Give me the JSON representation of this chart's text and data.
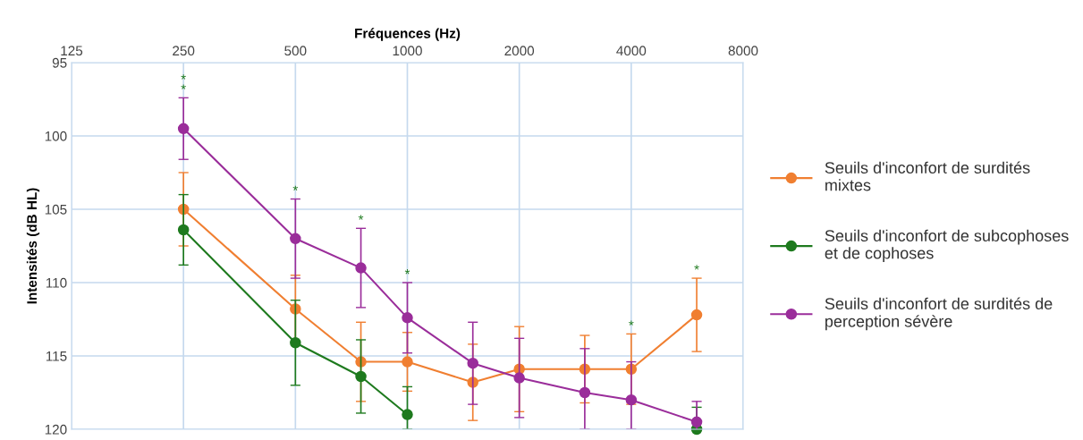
{
  "chart_data": {
    "type": "line",
    "xlabel": "Fréquences (Hz)",
    "ylabel": "Intensités (dB HL)",
    "x": [
      250,
      500,
      750,
      1000,
      1500,
      2000,
      3000,
      4000,
      6000
    ],
    "log": "x",
    "xlim": [
      125,
      8000
    ],
    "xticks": [
      125,
      250,
      500,
      1000,
      2000,
      4000,
      8000
    ],
    "ylim": [
      120,
      95
    ],
    "yticks": [
      95,
      100,
      105,
      110,
      115,
      120
    ],
    "grid": true,
    "legend": "right",
    "marker": "circle",
    "line_style": "solid",
    "series": [
      {
        "name": "Seuils d'inconfort de surdités\nmixtes",
        "color": "#f07f31",
        "values": [
          105.0,
          111.8,
          115.4,
          115.4,
          116.8,
          115.9,
          115.9,
          115.9,
          112.2
        ],
        "errors": [
          2.5,
          2.3,
          2.7,
          2.0,
          2.6,
          2.9,
          2.3,
          2.4,
          2.5
        ]
      },
      {
        "name": "Seuils d'inconfort de subcophoses\net de cophoses",
        "color": "#1e7a1e",
        "values": [
          106.4,
          114.1,
          116.4,
          119.0,
          null,
          null,
          null,
          null,
          120.0
        ],
        "errors": [
          2.4,
          2.9,
          2.5,
          [
            117.1,
            120.0
          ],
          null,
          null,
          null,
          null,
          [
            118.5,
            120.0
          ]
        ]
      },
      {
        "name": "Seuils d'inconfort de surdités de\nperception sévère",
        "color": "#9a2d9a",
        "values": [
          99.5,
          107.0,
          109.0,
          112.4,
          115.5,
          116.5,
          117.5,
          118.0,
          119.5
        ],
        "errors": [
          2.1,
          2.7,
          2.7,
          2.4,
          2.8,
          2.7,
          [
            114.5,
            120.0
          ],
          [
            115.4,
            120.0
          ],
          1.4
        ]
      }
    ],
    "annotations": [
      {
        "text": "*",
        "x": 250,
        "y": 97.4
      },
      {
        "text": "*",
        "x": 250,
        "y": 97.4
      },
      {
        "text": "*",
        "x": 500,
        "y": 104.3
      },
      {
        "text": "*",
        "x": 750,
        "y": 106.3
      },
      {
        "text": "*",
        "x": 1000,
        "y": 110.0
      },
      {
        "text": "*",
        "x": 4000,
        "y": 113.5
      },
      {
        "text": "*",
        "x": 6000,
        "y": 109.7
      }
    ]
  }
}
